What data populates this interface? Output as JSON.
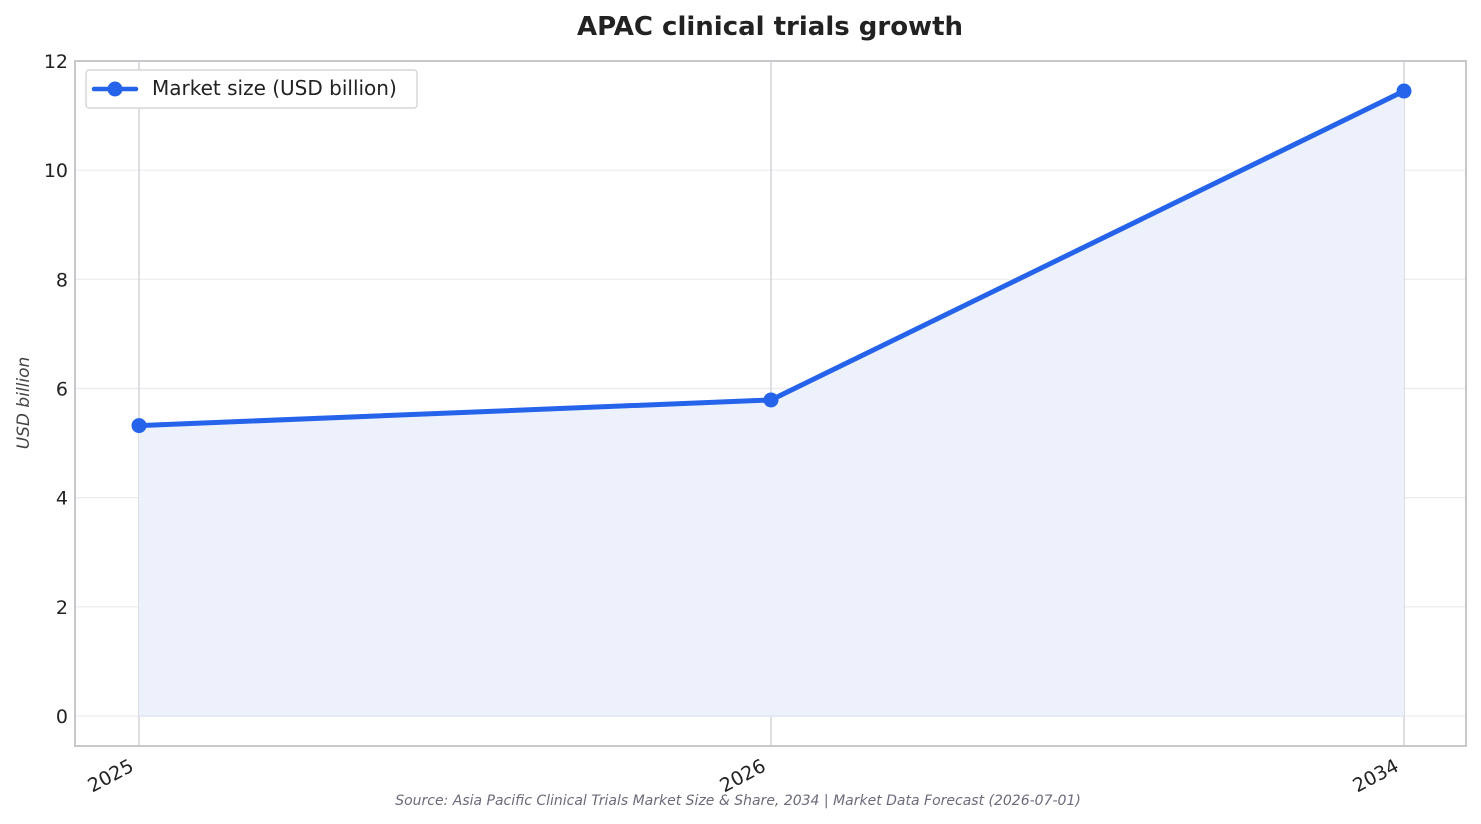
{
  "chart_data": {
    "type": "line",
    "title": "APAC clinical trials growth",
    "xlabel": "",
    "ylabel": "USD billion",
    "categories": [
      "2025",
      "2026",
      "2034"
    ],
    "series": [
      {
        "name": "Market size (USD billion)",
        "values": [
          5.32,
          5.79,
          11.45
        ],
        "color": "#2563eb",
        "fill": "#ecf1fc"
      }
    ],
    "ylim": [
      -0.55,
      12
    ],
    "yticks": [
      0,
      2,
      4,
      6,
      8,
      10,
      12
    ],
    "grid": true,
    "legend": "top-left",
    "source": "Source: Asia Pacific Clinical Trials Market Size & Share, 2034 | Market Data Forecast (2026-07-01)"
  }
}
